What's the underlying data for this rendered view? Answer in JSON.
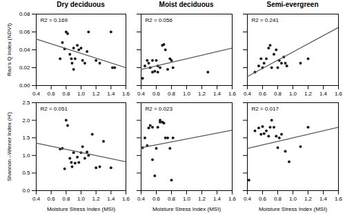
{
  "chart_data": [
    {
      "type": "scatter",
      "title": "Dry deciduous",
      "ylabel": "Rao's Q Index (NDVI)",
      "annotation": "R2 = 0.169",
      "xlim": [
        0.4,
        1.6
      ],
      "ylim": [
        0.0,
        0.08
      ],
      "xticks": [
        0.4,
        0.6,
        0.8,
        {
          "value": 1.0,
          "label": "1.0"
        },
        1.2,
        1.4,
        1.6
      ],
      "yticks": [
        {
          "value": 0.0,
          "label": "0.00"
        },
        0.02,
        0.04,
        0.06,
        0.08
      ],
      "series": [
        {
          "type": "scatter",
          "color": "#1a1a1a",
          "x": [
            0.72,
            0.75,
            0.78,
            0.8,
            0.82,
            0.85,
            0.87,
            0.88,
            0.9,
            0.9,
            0.92,
            0.95,
            0.97,
            1.0,
            1.02,
            1.05,
            1.08,
            1.1,
            1.2,
            1.25,
            1.4,
            1.42,
            1.45
          ],
          "values": [
            0.03,
            0.048,
            0.041,
            0.06,
            0.058,
            0.035,
            0.03,
            0.025,
            0.042,
            0.018,
            0.03,
            0.045,
            0.04,
            0.042,
            0.028,
            0.025,
            0.038,
            0.06,
            0.028,
            0.025,
            0.06,
            0.02,
            0.02
          ]
        },
        {
          "type": "line",
          "color": "#555555",
          "x": [
            0.4,
            1.6
          ],
          "values": [
            0.052,
            0.02
          ]
        }
      ]
    },
    {
      "type": "scatter",
      "title": "Moist deciduous",
      "annotation": "R2 = 0.056",
      "tick_labels": "x",
      "xlim": [
        0.4,
        1.6
      ],
      "ylim": [
        0.0,
        0.08
      ],
      "xticks": [
        0.4,
        0.6,
        0.8,
        {
          "value": 1.0,
          "label": "1.0"
        },
        1.2,
        1.4,
        1.6
      ],
      "yticks": [
        0.0,
        0.02,
        0.04,
        0.06,
        0.08
      ],
      "series": [
        {
          "type": "scatter",
          "color": "#1a1a1a",
          "x": [
            0.42,
            0.45,
            0.48,
            0.5,
            0.52,
            0.55,
            0.55,
            0.58,
            0.6,
            0.62,
            0.62,
            0.65,
            0.68,
            0.7,
            0.72,
            0.75,
            0.78,
            0.8,
            0.82,
            1.28
          ],
          "values": [
            0.008,
            0.022,
            0.028,
            0.025,
            0.02,
            0.015,
            0.028,
            0.016,
            0.028,
            0.022,
            0.015,
            0.02,
            0.045,
            0.046,
            0.04,
            0.018,
            0.03,
            0.028,
            0.02,
            0.015
          ]
        },
        {
          "type": "line",
          "color": "#555555",
          "x": [
            0.4,
            1.6
          ],
          "values": [
            0.018,
            0.042
          ]
        }
      ]
    },
    {
      "type": "scatter",
      "title": "Semi-evergreen",
      "annotation": "R2 = 0.241",
      "tick_labels": "x",
      "xlim": [
        0.4,
        1.6
      ],
      "ylim": [
        0.0,
        0.08
      ],
      "xticks": [
        0.4,
        0.6,
        0.8,
        {
          "value": 1.0,
          "label": "1.0"
        },
        1.2,
        1.4,
        1.6
      ],
      "yticks": [
        0.0,
        0.02,
        0.04,
        0.06,
        0.08
      ],
      "series": [
        {
          "type": "scatter",
          "color": "#1a1a1a",
          "x": [
            0.5,
            0.55,
            0.58,
            0.6,
            0.62,
            0.65,
            0.68,
            0.7,
            0.72,
            0.75,
            0.78,
            0.8,
            0.82,
            0.85,
            0.88,
            0.9,
            0.92,
            1.1,
            1.2
          ],
          "values": [
            0.015,
            0.022,
            0.03,
            0.02,
            0.025,
            0.03,
            0.042,
            0.045,
            0.02,
            0.035,
            0.04,
            0.02,
            0.028,
            0.025,
            0.032,
            0.025,
            0.022,
            0.025,
            0.03
          ]
        },
        {
          "type": "line",
          "color": "#555555",
          "x": [
            0.4,
            1.6
          ],
          "values": [
            0.01,
            0.065
          ]
        }
      ]
    },
    {
      "type": "scatter",
      "xlabel": "Moisture Stress Index (MSI)",
      "ylabel": "Shannon –Wiener Index (H’)",
      "annotation": "R2 = 0.051",
      "xlim": [
        0.4,
        1.6
      ],
      "ylim": [
        0.0,
        2.5
      ],
      "xticks": [
        0.4,
        0.6,
        0.8,
        {
          "value": 1.0,
          "label": "1.0"
        },
        1.2,
        1.4,
        1.6
      ],
      "yticks": [
        {
          "value": 0.0,
          "label": "0.0"
        },
        0.5,
        {
          "value": 1.0,
          "label": "1.0"
        },
        1.5,
        {
          "value": 2.0,
          "label": "2.0"
        },
        2.5
      ],
      "series": [
        {
          "type": "scatter",
          "color": "#1a1a1a",
          "x": [
            0.72,
            0.75,
            0.78,
            0.8,
            0.82,
            0.85,
            0.87,
            0.88,
            0.9,
            0.92,
            0.95,
            0.97,
            1.0,
            1.02,
            1.05,
            1.08,
            1.1,
            1.15,
            1.2,
            1.25,
            1.3,
            1.4
          ],
          "values": [
            1.18,
            1.2,
            0.62,
            2.0,
            1.85,
            0.92,
            0.8,
            0.68,
            1.08,
            0.78,
            0.95,
            0.8,
            1.08,
            1.25,
            0.92,
            1.1,
            1.0,
            1.6,
            0.65,
            0.68,
            1.4,
            0.65
          ]
        },
        {
          "type": "line",
          "color": "#555555",
          "x": [
            0.4,
            1.6
          ],
          "values": [
            1.35,
            0.82
          ]
        }
      ]
    },
    {
      "type": "scatter",
      "xlabel": "Moisture Stress Index (MSI)",
      "annotation": "R2 = 0.023",
      "tick_labels": "x",
      "xlim": [
        0.4,
        1.6
      ],
      "ylim": [
        0.0,
        2.5
      ],
      "xticks": [
        0.4,
        0.6,
        0.8,
        {
          "value": 1.0,
          "label": "1.0"
        },
        1.2,
        1.4,
        1.6
      ],
      "yticks": [
        0.0,
        0.5,
        1.0,
        1.5,
        2.0,
        2.5
      ],
      "series": [
        {
          "type": "scatter",
          "color": "#1a1a1a",
          "x": [
            0.42,
            0.45,
            0.48,
            0.5,
            0.52,
            0.55,
            0.55,
            0.58,
            0.6,
            0.62,
            0.65,
            0.65,
            0.68,
            0.7,
            0.72,
            0.75,
            0.78,
            0.8,
            0.82
          ],
          "values": [
            1.22,
            1.5,
            1.28,
            1.78,
            1.85,
            0.88,
            1.8,
            0.42,
            1.2,
            1.8,
            1.95,
            2.0,
            1.95,
            1.92,
            1.5,
            1.5,
            1.2,
            0.3,
            1.5
          ]
        },
        {
          "type": "line",
          "color": "#555555",
          "x": [
            0.4,
            1.6
          ],
          "values": [
            1.22,
            1.72
          ]
        }
      ]
    },
    {
      "type": "scatter",
      "xlabel": "Moisture Stress Index (MSI)",
      "annotation": "R2 = 0.017",
      "tick_labels": "x",
      "xlim": [
        0.4,
        1.6
      ],
      "ylim": [
        0.0,
        2.5
      ],
      "xticks": [
        0.4,
        0.6,
        0.8,
        {
          "value": 1.0,
          "label": "1.0"
        },
        1.2,
        1.4,
        1.6
      ],
      "yticks": [
        0.0,
        0.5,
        1.0,
        1.5,
        2.0,
        2.5
      ],
      "series": [
        {
          "type": "scatter",
          "color": "#1a1a1a",
          "x": [
            0.42,
            0.5,
            0.55,
            0.58,
            0.6,
            0.62,
            0.65,
            0.68,
            0.7,
            0.72,
            0.75,
            0.78,
            0.8,
            0.82,
            0.85,
            0.9,
            0.95,
            1.1,
            1.2
          ],
          "values": [
            0.3,
            1.7,
            1.78,
            1.6,
            1.82,
            1.62,
            1.7,
            1.55,
            1.8,
            2.0,
            1.8,
            1.55,
            1.22,
            1.5,
            1.6,
            1.12,
            0.82,
            1.25,
            1.8
          ]
        },
        {
          "type": "line",
          "color": "#555555",
          "x": [
            0.4,
            1.6
          ],
          "values": [
            1.2,
            1.8
          ]
        }
      ]
    }
  ]
}
